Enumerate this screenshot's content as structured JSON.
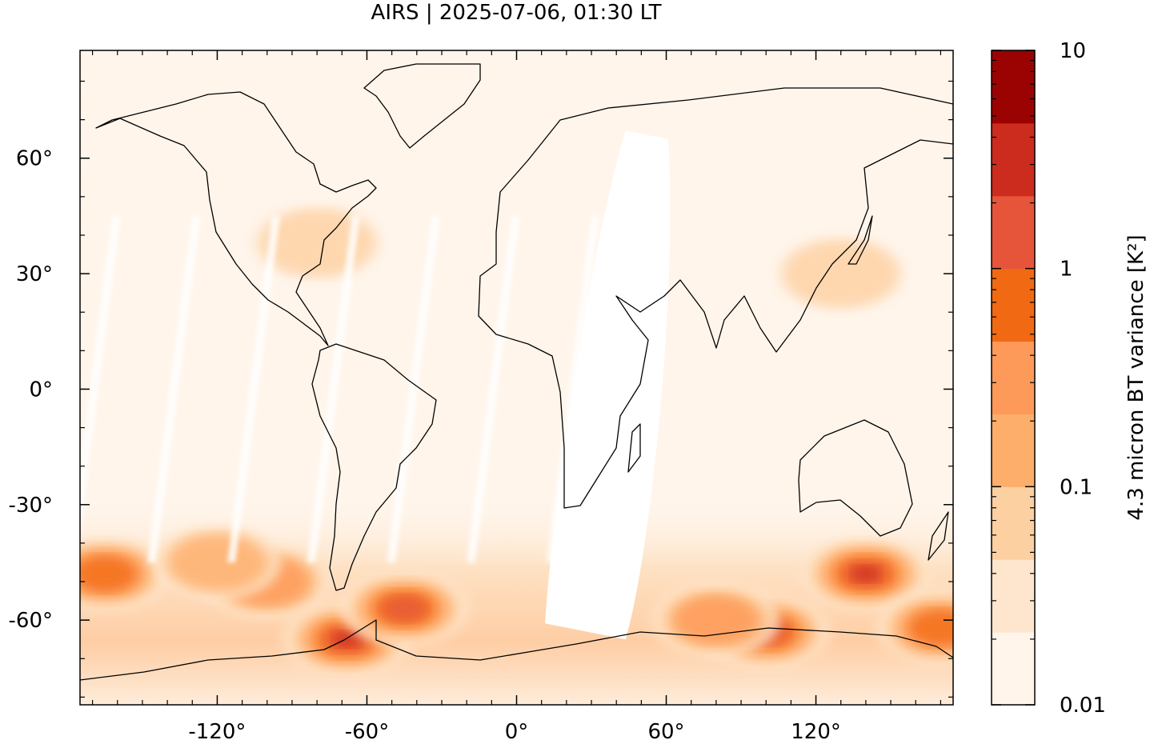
{
  "chart_data": {
    "type": "heatmap",
    "title": "AIRS | 2025-07-06, 01:30 LT",
    "xlabel": "",
    "ylabel": "",
    "xlim": [
      -175,
      175
    ],
    "ylim": [
      -82,
      88
    ],
    "x_ticks": [
      {
        "value": -120,
        "label": "-120°"
      },
      {
        "value": -60,
        "label": "-60°"
      },
      {
        "value": 0,
        "label": "0°"
      },
      {
        "value": 60,
        "label": "60°"
      },
      {
        "value": 120,
        "label": "120°"
      }
    ],
    "y_ticks": [
      {
        "value": 60,
        "label": "60°"
      },
      {
        "value": 30,
        "label": "30°"
      },
      {
        "value": 0,
        "label": "0°"
      },
      {
        "value": -30,
        "label": "-30°"
      },
      {
        "value": -60,
        "label": "-60°"
      }
    ],
    "colorbar": {
      "label": "4.3 micron BT variance [K²]",
      "scale": "log",
      "range": [
        0.01,
        10
      ],
      "tick_labels": [
        {
          "value": 10,
          "label": "10"
        },
        {
          "value": 1,
          "label": "1"
        },
        {
          "value": 0.1,
          "label": "0.1"
        },
        {
          "value": 0.01,
          "label": "0.01"
        }
      ],
      "colors": [
        "#fff5eb",
        "#fee6ce",
        "#fdd0a2",
        "#fdae6b",
        "#fd9a5a",
        "#f16913",
        "#e6553a",
        "#cc2c1e",
        "#9b0303"
      ]
    },
    "hotspots": [
      {
        "lon": -165,
        "lat": -48,
        "level": 5
      },
      {
        "lon": -100,
        "lat": -50,
        "level": 4
      },
      {
        "lon": -120,
        "lat": -45,
        "level": 3
      },
      {
        "lon": -68,
        "lat": -65,
        "level": 7
      },
      {
        "lon": -45,
        "lat": -57,
        "level": 6
      },
      {
        "lon": 140,
        "lat": -48,
        "level": 7
      },
      {
        "lon": 100,
        "lat": -63,
        "level": 6
      },
      {
        "lon": 80,
        "lat": -60,
        "level": 4
      },
      {
        "lon": 170,
        "lat": -62,
        "level": 5
      },
      {
        "lon": 130,
        "lat": 30,
        "level": 2
      },
      {
        "lon": -80,
        "lat": 38,
        "level": 2
      }
    ],
    "data_gaps": [
      {
        "lon_center": 38,
        "lat_top": 65,
        "lat_bottom": -65,
        "width": 38
      }
    ]
  }
}
